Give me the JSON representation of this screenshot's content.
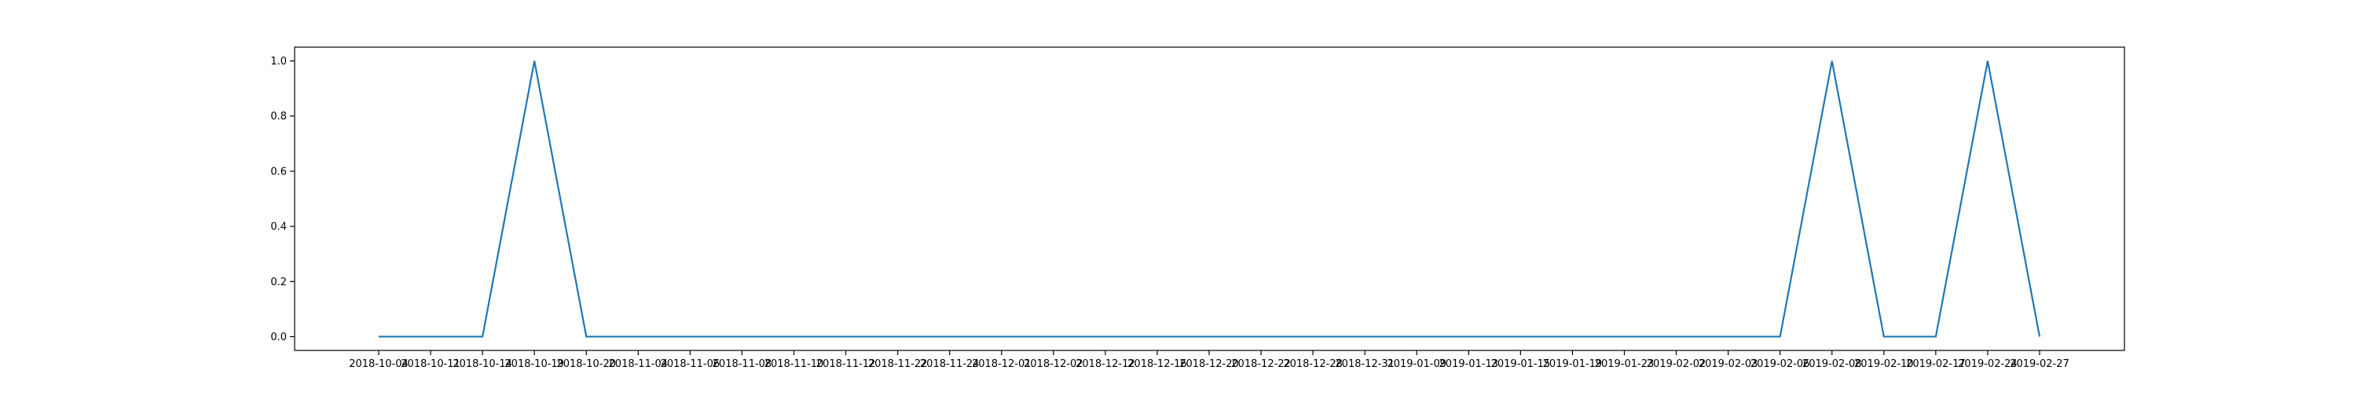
{
  "chart_data": {
    "type": "line",
    "title": "",
    "xlabel": "",
    "ylabel": "",
    "ylim": [
      -0.05,
      1.05
    ],
    "yticks": [
      0.0,
      0.2,
      0.4,
      0.6,
      0.8,
      1.0
    ],
    "ytick_labels": [
      "0.0",
      "0.2",
      "0.4",
      "0.6",
      "0.8",
      "1.0"
    ],
    "x_labels": [
      "2018-10-04",
      "2018-10-11",
      "2018-10-14",
      "2018-10-19",
      "2018-10-20",
      "2018-11-04",
      "2018-11-06",
      "2018-11-08",
      "2018-11-10",
      "2018-11-12",
      "2018-11-22",
      "2018-11-24",
      "2018-12-01",
      "2018-12-02",
      "2018-12-12",
      "2018-12-16",
      "2018-12-20",
      "2018-12-22",
      "2018-12-28",
      "2018-12-31",
      "2019-01-09",
      "2019-01-13",
      "2019-01-15",
      "2019-01-19",
      "2019-01-23",
      "2019-02-02",
      "2019-02-03",
      "2019-02-06",
      "2019-02-08",
      "2019-02-10",
      "2019-02-17",
      "2019-02-24",
      "2019-02-27"
    ],
    "series": [
      {
        "values": [
          0,
          0,
          0,
          1,
          0,
          0,
          0,
          0,
          0,
          0,
          0,
          0,
          0,
          0,
          0,
          0,
          0,
          0,
          0,
          0,
          0,
          0,
          0,
          0,
          0,
          0,
          0,
          0,
          1,
          0,
          0,
          1,
          0
        ]
      }
    ],
    "grid": false,
    "colors": {
      "line": "#1f77b4",
      "axes": "#000000",
      "background": "#ffffff"
    }
  }
}
